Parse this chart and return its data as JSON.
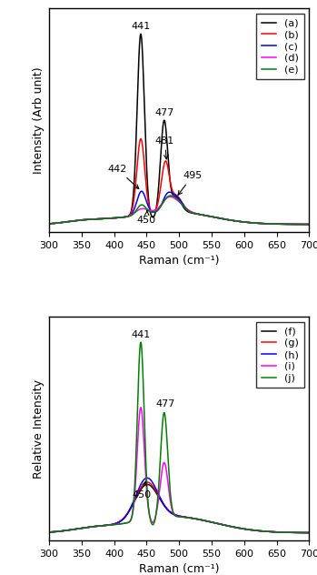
{
  "xmin": 300,
  "xmax": 700,
  "xticks": [
    300,
    350,
    400,
    450,
    500,
    550,
    600,
    650,
    700
  ],
  "xlabel": "Raman (cm⁻¹)",
  "top_ylabel": "Intensity (Arb unit)",
  "bot_ylabel": "Relative Intensity",
  "top_legend": [
    "(a)",
    "(b)",
    "(c)",
    "(d)",
    "(e)"
  ],
  "bot_legend": [
    "(f)",
    "(g)",
    "(h)",
    "(i)",
    "(j)"
  ],
  "top_colors": [
    "black",
    "red",
    "blue",
    "magenta",
    "green"
  ],
  "bot_colors": [
    "black",
    "red",
    "blue",
    "magenta",
    "green"
  ]
}
